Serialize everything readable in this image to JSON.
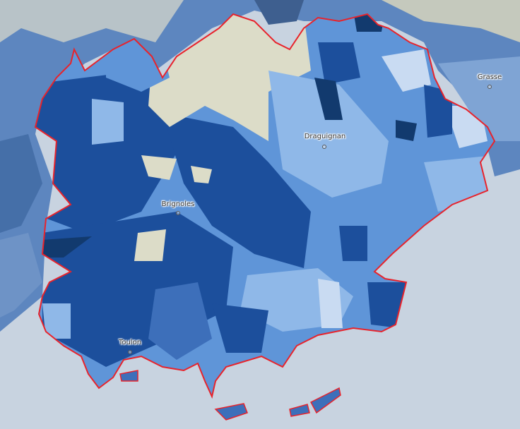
{
  "map": {
    "cities": [
      {
        "name": "Grasse"
      },
      {
        "name": "Draguignan"
      },
      {
        "name": "Brignoles"
      },
      {
        "name": "Toulon"
      }
    ],
    "colors": {
      "sea": "#c8d3e0",
      "outline": "#e8232b",
      "no_data": "#dcdcc8",
      "scale": [
        "#c9dbf2",
        "#8fb8e8",
        "#5f95d8",
        "#3d6fba",
        "#1c4f9c",
        "#123a6e"
      ]
    }
  }
}
